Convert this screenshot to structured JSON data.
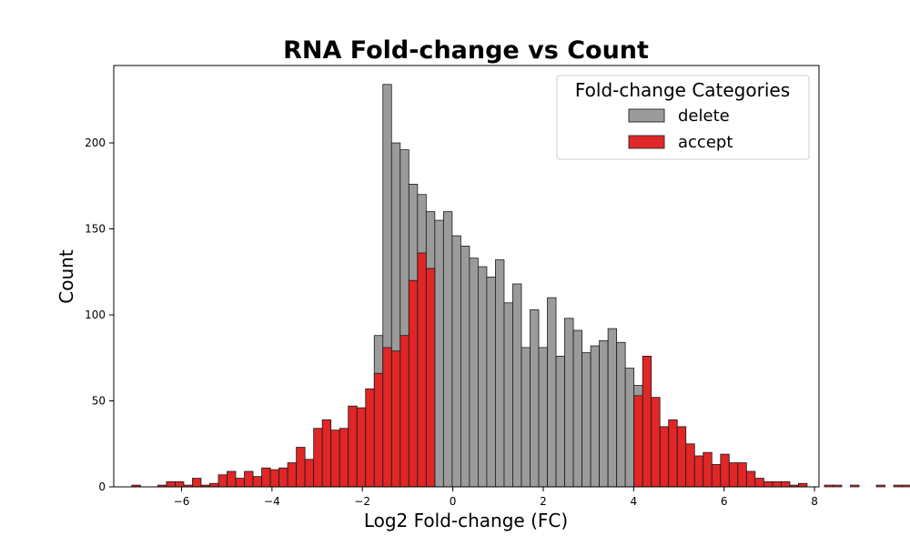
{
  "chart_data": {
    "type": "bar",
    "subtype": "histogram",
    "title": "RNA Fold-change vs Count",
    "xlabel": "Log2 Fold-change (FC)",
    "ylabel": "Count",
    "xlim": [
      -7.5,
      8.1
    ],
    "ylim": [
      0,
      245
    ],
    "xticks": [
      -6,
      -4,
      -2,
      0,
      2,
      4,
      6,
      8
    ],
    "xtick_labels": [
      "−6",
      "−4",
      "−2",
      "0",
      "2",
      "4",
      "6",
      "8"
    ],
    "yticks": [
      0,
      50,
      100,
      150,
      200
    ],
    "ytick_labels": [
      "0",
      "50",
      "100",
      "150",
      "200"
    ],
    "grid": false,
    "legend": {
      "title": "Fold-change Categories",
      "placement": "top-right"
    },
    "bin_start": -7.1,
    "bin_width": 0.1915,
    "series": [
      {
        "name": "delete",
        "color": "#9b9b9b",
        "bins": [
          {
            "i": 28,
            "v": 88
          },
          {
            "i": 29,
            "v": 234
          },
          {
            "i": 30,
            "v": 200
          },
          {
            "i": 31,
            "v": 196
          },
          {
            "i": 32,
            "v": 176
          },
          {
            "i": 33,
            "v": 170
          },
          {
            "i": 34,
            "v": 160
          },
          {
            "i": 35,
            "v": 155
          },
          {
            "i": 36,
            "v": 160
          },
          {
            "i": 37,
            "v": 146
          },
          {
            "i": 38,
            "v": 140
          },
          {
            "i": 39,
            "v": 133
          },
          {
            "i": 40,
            "v": 128
          },
          {
            "i": 41,
            "v": 122
          },
          {
            "i": 42,
            "v": 132
          },
          {
            "i": 43,
            "v": 107
          },
          {
            "i": 44,
            "v": 118
          },
          {
            "i": 45,
            "v": 81
          },
          {
            "i": 46,
            "v": 103
          },
          {
            "i": 47,
            "v": 81
          },
          {
            "i": 48,
            "v": 110
          },
          {
            "i": 49,
            "v": 76
          },
          {
            "i": 50,
            "v": 98
          },
          {
            "i": 51,
            "v": 91
          },
          {
            "i": 52,
            "v": 78
          },
          {
            "i": 53,
            "v": 82
          },
          {
            "i": 54,
            "v": 85
          },
          {
            "i": 55,
            "v": 92
          },
          {
            "i": 56,
            "v": 84
          },
          {
            "i": 57,
            "v": 69
          },
          {
            "i": 58,
            "v": 59
          }
        ]
      },
      {
        "name": "accept",
        "color": "#e02626",
        "bins": [
          {
            "i": 0,
            "v": 1
          },
          {
            "i": 3,
            "v": 1
          },
          {
            "i": 4,
            "v": 3
          },
          {
            "i": 5,
            "v": 3
          },
          {
            "i": 6,
            "v": 1
          },
          {
            "i": 7,
            "v": 5
          },
          {
            "i": 8,
            "v": 1
          },
          {
            "i": 9,
            "v": 2
          },
          {
            "i": 10,
            "v": 7
          },
          {
            "i": 11,
            "v": 9
          },
          {
            "i": 12,
            "v": 5
          },
          {
            "i": 13,
            "v": 9
          },
          {
            "i": 14,
            "v": 6
          },
          {
            "i": 15,
            "v": 11
          },
          {
            "i": 16,
            "v": 10
          },
          {
            "i": 17,
            "v": 11
          },
          {
            "i": 18,
            "v": 14
          },
          {
            "i": 19,
            "v": 23
          },
          {
            "i": 20,
            "v": 16
          },
          {
            "i": 21,
            "v": 34
          },
          {
            "i": 22,
            "v": 39
          },
          {
            "i": 23,
            "v": 33
          },
          {
            "i": 24,
            "v": 34
          },
          {
            "i": 25,
            "v": 47
          },
          {
            "i": 26,
            "v": 46
          },
          {
            "i": 27,
            "v": 57
          },
          {
            "i": 28,
            "v": 66
          },
          {
            "i": 29,
            "v": 81
          },
          {
            "i": 30,
            "v": 79
          },
          {
            "i": 31,
            "v": 88
          },
          {
            "i": 32,
            "v": 120
          },
          {
            "i": 33,
            "v": 136
          },
          {
            "i": 34,
            "v": 127
          },
          {
            "i": 58,
            "v": 53
          },
          {
            "i": 59,
            "v": 76
          },
          {
            "i": 60,
            "v": 52
          },
          {
            "i": 61,
            "v": 35
          },
          {
            "i": 62,
            "v": 39
          },
          {
            "i": 63,
            "v": 35
          },
          {
            "i": 64,
            "v": 25
          },
          {
            "i": 65,
            "v": 18
          },
          {
            "i": 66,
            "v": 20
          },
          {
            "i": 67,
            "v": 13
          },
          {
            "i": 68,
            "v": 19
          },
          {
            "i": 69,
            "v": 14
          },
          {
            "i": 70,
            "v": 14
          },
          {
            "i": 71,
            "v": 9
          },
          {
            "i": 72,
            "v": 5
          },
          {
            "i": 73,
            "v": 3
          },
          {
            "i": 74,
            "v": 3
          },
          {
            "i": 75,
            "v": 3
          },
          {
            "i": 76,
            "v": 1
          },
          {
            "i": 77,
            "v": 2
          },
          {
            "i": 80,
            "v": 1
          },
          {
            "i": 81,
            "v": 1
          },
          {
            "i": 83,
            "v": 1
          },
          {
            "i": 86,
            "v": 1
          },
          {
            "i": 88,
            "v": 1
          },
          {
            "i": 89,
            "v": 1
          },
          {
            "i": 91,
            "v": 1
          },
          {
            "i": 92,
            "v": 1
          },
          {
            "i": 94,
            "v": 1
          }
        ]
      }
    ]
  }
}
